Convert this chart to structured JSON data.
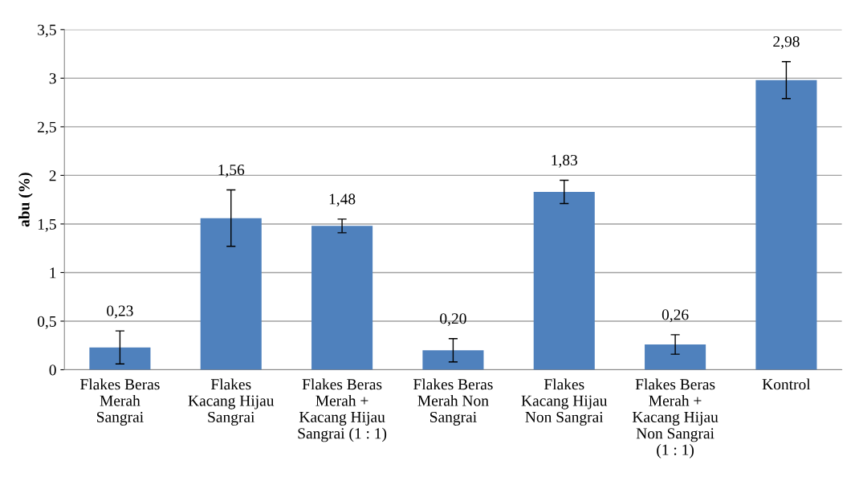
{
  "chart_data": {
    "type": "bar",
    "ylabel": "abu (%)",
    "categories": [
      "Flakes Beras\nMerah\nSangrai",
      "Flakes\nKacang Hijau\nSangrai",
      "Flakes Beras\nMerah +\nKacang Hijau\nSangrai (1 : 1)",
      "Flakes Beras\nMerah Non\nSangrai",
      "Flakes\nKacang Hijau\nNon Sangrai",
      "Flakes Beras\nMerah +\nKacang Hijau\nNon Sangrai\n(1 : 1)",
      "Kontrol"
    ],
    "values": [
      0.23,
      1.56,
      1.48,
      0.2,
      1.83,
      0.26,
      2.98
    ],
    "value_labels": [
      "0,23",
      "1,56",
      "1,48",
      "0,20",
      "1,83",
      "0,26",
      "2,98"
    ],
    "errors": [
      0.17,
      0.29,
      0.07,
      0.12,
      0.12,
      0.1,
      0.19
    ],
    "color": "#4f81bd",
    "ylim": [
      0,
      3.5
    ],
    "yticks": [
      0,
      {
        "value": 0.5,
        "label": "0,5"
      },
      1,
      {
        "value": 1.5,
        "label": "1,5"
      },
      2,
      {
        "value": 2.5,
        "label": "2,5"
      },
      3,
      {
        "value": 3.5,
        "label": "3,5"
      }
    ],
    "grid": "y",
    "legend": false
  }
}
